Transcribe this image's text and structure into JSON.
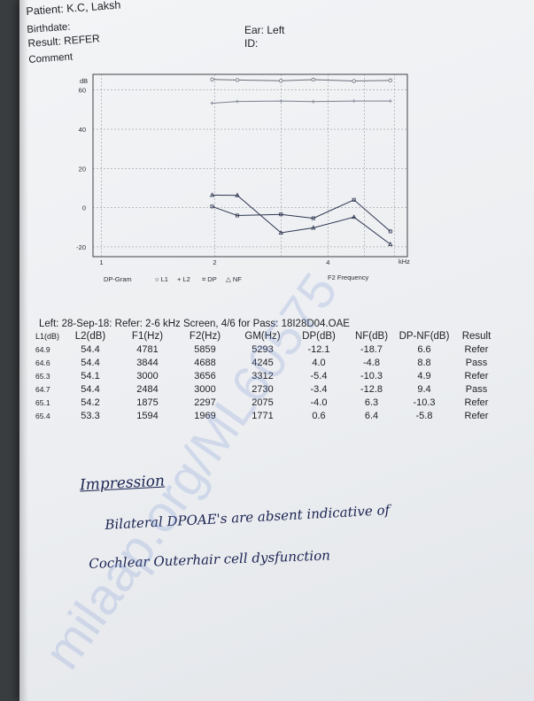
{
  "header": {
    "patient": "Patient: K.C, Laksh",
    "birthdate": "Birthdate:",
    "result": "Result: REFER",
    "comment": "Comment",
    "ear": "Ear: Left",
    "id": "ID:"
  },
  "graph": {
    "y_unit": "dB",
    "y_ticks": [
      "60",
      "40",
      "20",
      "0",
      "-20"
    ],
    "x_ticks": [
      "1",
      "2",
      "4"
    ],
    "x_unit": "kHz",
    "legend": [
      "DP-Gram",
      "○ L1",
      "+ L2",
      "⌗ DP",
      "△ NF"
    ],
    "x_label": "F2 Frequency"
  },
  "chart_data": {
    "type": "line",
    "xscale": "log",
    "xlabel": "F2 Frequency",
    "x_unit": "kHz",
    "ylabel": "dB",
    "ylim": [
      -25,
      68
    ],
    "x": [
      1.969,
      2.297,
      3.0,
      3.656,
      4.688,
      5.859
    ],
    "series": [
      {
        "name": "L1",
        "values": [
          65.4,
          65.1,
          64.7,
          65.3,
          64.6,
          64.9
        ]
      },
      {
        "name": "L2",
        "values": [
          53.3,
          54.2,
          54.4,
          54.1,
          54.4,
          54.4
        ]
      },
      {
        "name": "DP",
        "values": [
          0.6,
          -4.0,
          -3.4,
          -5.4,
          4.0,
          -12.1
        ]
      },
      {
        "name": "NF",
        "values": [
          6.4,
          6.3,
          -12.8,
          -10.3,
          -4.8,
          -18.7
        ]
      }
    ],
    "colors": {
      "L1": "#6a6f7a",
      "L2": "#7a8090",
      "DP": "#2c3550",
      "NF": "#2c3550"
    }
  },
  "table": {
    "title": "Left: 28-Sep-18: Refer: 2-6 kHz Screen, 4/6 for Pass: 18I28D04.OAE",
    "columns": [
      "L1(dB)",
      "L2(dB)",
      "F1(Hz)",
      "F2(Hz)",
      "GM(Hz)",
      "DP(dB)",
      "NF(dB)",
      "DP-NF(dB)",
      "Result"
    ],
    "rows": [
      [
        "64.9",
        "54.4",
        "4781",
        "5859",
        "5293",
        "-12.1",
        "-18.7",
        "6.6",
        "Refer"
      ],
      [
        "64.6",
        "54.4",
        "3844",
        "4688",
        "4245",
        "4.0",
        "-4.8",
        "8.8",
        "Pass"
      ],
      [
        "65.3",
        "54.1",
        "3000",
        "3656",
        "3312",
        "-5.4",
        "-10.3",
        "4.9",
        "Refer"
      ],
      [
        "64.7",
        "54.4",
        "2484",
        "3000",
        "2730",
        "-3.4",
        "-12.8",
        "9.4",
        "Pass"
      ],
      [
        "65.1",
        "54.2",
        "1875",
        "2297",
        "2075",
        "-4.0",
        "6.3",
        "-10.3",
        "Refer"
      ],
      [
        "65.4",
        "53.3",
        "1594",
        "1969",
        "1771",
        "0.6",
        "6.4",
        "-5.8",
        "Refer"
      ]
    ]
  },
  "notes": {
    "heading": "Impression",
    "line1": "Bilateral DPOAE's are absent indicative of",
    "line2": "Cochlear Outerhair cell dysfunction"
  },
  "watermark": "milaap.org/ML60575"
}
